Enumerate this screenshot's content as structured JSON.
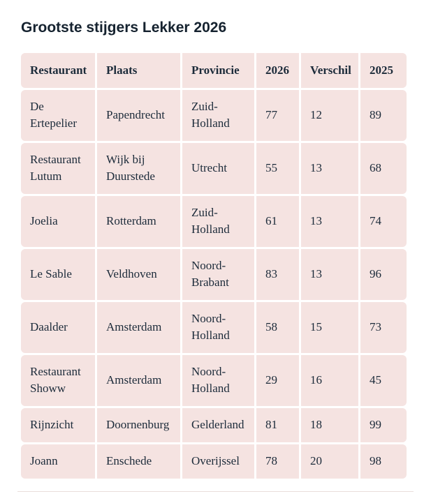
{
  "page": {
    "title": "Grootste stijgers Lekker 2026"
  },
  "colors": {
    "cell_background": "#f5e3e1",
    "cell_text": "#1c2b3a",
    "title_text": "#15222f",
    "divider": "#eadedb",
    "page_background": "#ffffff"
  },
  "table": {
    "headers": [
      "Restaurant",
      "Plaats",
      "Provincie",
      "2026",
      "Verschil",
      "2025"
    ],
    "rows": [
      [
        "De Ertepelier",
        "Papendrecht",
        "Zuid-Holland",
        "77",
        "12",
        "89"
      ],
      [
        "Restaurant Lutum",
        "Wijk bij Duurstede",
        "Utrecht",
        "55",
        "13",
        "68"
      ],
      [
        "Joelia",
        "Rotterdam",
        "Zuid-Holland",
        "61",
        "13",
        "74"
      ],
      [
        "Le Sable",
        "Veldhoven",
        "Noord-Brabant",
        "83",
        "13",
        "96"
      ],
      [
        "Daalder",
        "Amsterdam",
        "Noord-Holland",
        "58",
        "15",
        "73"
      ],
      [
        "Restaurant Showw",
        "Amsterdam",
        "Noord-Holland",
        "29",
        "16",
        "45"
      ],
      [
        "Rijnzicht",
        "Doornenburg",
        "Gelderland",
        "81",
        "18",
        "99"
      ],
      [
        "Joann",
        "Enschede",
        "Overijssel",
        "78",
        "20",
        "98"
      ]
    ]
  },
  "chart_data": {
    "type": "table",
    "title": "Grootste stijgers Lekker 2026",
    "columns": [
      "Restaurant",
      "Plaats",
      "Provincie",
      "2026",
      "Verschil",
      "2025"
    ],
    "rows": [
      {
        "restaurant": "De Ertepelier",
        "plaats": "Papendrecht",
        "provincie": "Zuid-Holland",
        "score_2026": 77,
        "verschil": 12,
        "score_2025": 89
      },
      {
        "restaurant": "Restaurant Lutum",
        "plaats": "Wijk bij Duurstede",
        "provincie": "Utrecht",
        "score_2026": 55,
        "verschil": 13,
        "score_2025": 68
      },
      {
        "restaurant": "Joelia",
        "plaats": "Rotterdam",
        "provincie": "Zuid-Holland",
        "score_2026": 61,
        "verschil": 13,
        "score_2025": 74
      },
      {
        "restaurant": "Le Sable",
        "plaats": "Veldhoven",
        "provincie": "Noord-Brabant",
        "score_2026": 83,
        "verschil": 13,
        "score_2025": 96
      },
      {
        "restaurant": "Daalder",
        "plaats": "Amsterdam",
        "provincie": "Noord-Holland",
        "score_2026": 58,
        "verschil": 15,
        "score_2025": 73
      },
      {
        "restaurant": "Restaurant Showw",
        "plaats": "Amsterdam",
        "provincie": "Noord-Holland",
        "score_2026": 29,
        "verschil": 16,
        "score_2025": 45
      },
      {
        "restaurant": "Rijnzicht",
        "plaats": "Doornenburg",
        "provincie": "Gelderland",
        "score_2026": 81,
        "verschil": 18,
        "score_2025": 99
      },
      {
        "restaurant": "Joann",
        "plaats": "Enschede",
        "provincie": "Overijssel",
        "score_2026": 78,
        "verschil": 20,
        "score_2025": 98
      }
    ]
  }
}
